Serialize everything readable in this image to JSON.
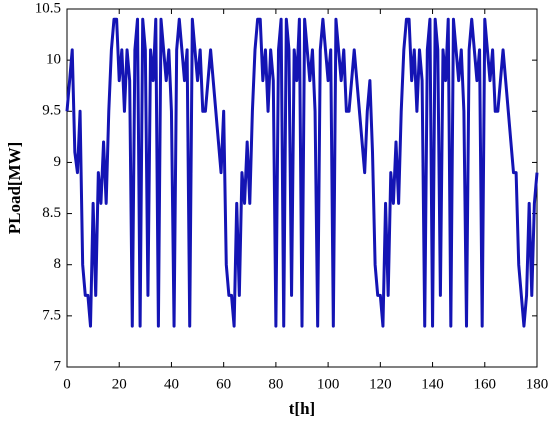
{
  "chart_data": {
    "type": "line",
    "xlabel": "t[h]",
    "ylabel": "PLoad[MW]",
    "xlim": [
      0,
      180
    ],
    "ylim": [
      7,
      10.5
    ],
    "xticks": [
      0,
      20,
      40,
      60,
      80,
      100,
      120,
      140,
      160,
      180
    ],
    "yticks": [
      7,
      7.5,
      8,
      8.5,
      9,
      9.5,
      10,
      10.5
    ],
    "x": [
      0,
      1,
      2,
      3,
      4,
      5,
      6,
      7,
      8,
      9,
      10,
      11,
      12,
      13,
      14,
      15,
      16,
      17,
      18,
      19,
      20,
      21,
      22,
      23,
      24,
      25,
      26,
      27,
      28,
      29,
      30,
      31,
      32,
      33,
      34,
      35,
      36,
      37,
      38,
      39,
      40,
      41,
      42,
      43,
      44,
      45,
      46,
      47,
      48,
      49,
      50,
      51,
      52,
      53,
      54,
      55,
      56,
      57,
      58,
      59,
      60,
      61,
      62,
      63,
      64,
      65,
      66,
      67,
      68,
      69,
      70,
      71,
      72,
      73,
      74,
      75,
      76,
      77,
      78,
      79,
      80,
      81,
      82,
      83,
      84,
      85,
      86,
      87,
      88,
      89,
      90,
      91,
      92,
      93,
      94,
      95,
      96,
      97,
      98,
      99,
      100,
      101,
      102,
      103,
      104,
      105,
      106,
      107,
      108,
      109,
      110,
      111,
      112,
      113,
      114,
      115,
      116,
      117,
      118,
      119,
      120,
      121,
      122,
      123,
      124,
      125,
      126,
      127,
      128,
      129,
      130,
      131,
      132,
      133,
      134,
      135,
      136,
      137,
      138,
      139,
      140,
      141,
      142,
      143,
      144,
      145,
      146,
      147,
      148,
      149,
      150,
      151,
      152,
      153,
      154,
      155,
      156,
      157,
      158,
      159,
      160,
      161,
      162,
      163,
      164,
      165,
      166,
      167,
      168,
      169,
      170,
      171,
      172,
      173,
      174,
      175,
      176,
      177,
      178,
      179,
      180
    ],
    "series": [
      {
        "color": "#1414b4",
        "values": [
          9.5,
          9.8,
          10.1,
          9.1,
          8.9,
          9.5,
          8.0,
          7.7,
          7.7,
          7.4,
          8.6,
          7.7,
          8.9,
          8.6,
          9.2,
          8.6,
          9.5,
          10.1,
          10.4,
          10.4,
          9.8,
          10.1,
          9.5,
          10.1,
          9.8,
          7.4,
          10.1,
          10.4,
          7.4,
          10.4,
          10.1,
          7.7,
          10.1,
          9.8,
          10.4,
          7.4,
          10.4,
          10.1,
          9.8,
          10.1,
          9.5,
          7.4,
          10.1,
          10.4,
          10.1,
          9.8,
          10.1,
          7.4,
          10.4,
          10.1,
          9.8,
          10.1,
          9.5,
          9.5,
          9.8,
          10.1,
          9.8,
          9.5,
          9.2,
          8.9,
          9.5,
          8.0,
          7.7,
          7.7,
          7.4,
          8.6,
          7.7,
          8.9,
          8.6,
          9.2,
          8.6,
          9.5,
          10.1,
          10.4,
          10.4,
          9.8,
          10.1,
          9.5,
          10.1,
          9.8,
          7.4,
          10.1,
          10.4,
          7.4,
          10.4,
          10.1,
          7.7,
          10.1,
          9.8,
          10.4,
          7.4,
          10.4,
          10.1,
          9.8,
          10.1,
          9.5,
          7.4,
          10.1,
          10.4,
          10.1,
          9.8,
          10.1,
          7.4,
          10.4,
          10.1,
          9.8,
          10.1,
          9.5,
          9.5,
          9.8,
          10.1,
          9.8,
          9.5,
          9.2,
          8.9,
          9.5,
          9.8,
          9.1,
          8.0,
          7.7,
          7.7,
          7.4,
          8.6,
          7.7,
          8.9,
          8.6,
          9.2,
          8.6,
          9.5,
          10.1,
          10.4,
          10.4,
          9.8,
          10.1,
          9.5,
          10.1,
          9.8,
          7.4,
          10.1,
          10.4,
          7.4,
          10.4,
          10.1,
          7.7,
          10.1,
          9.8,
          10.4,
          7.4,
          10.4,
          10.1,
          9.8,
          10.1,
          9.5,
          7.4,
          10.1,
          10.4,
          10.1,
          9.8,
          10.1,
          7.4,
          10.4,
          10.1,
          9.8,
          10.1,
          9.5,
          9.5,
          9.8,
          10.1,
          9.8,
          9.5,
          9.2,
          8.9,
          8.9,
          8.0,
          7.7,
          7.4,
          7.7,
          8.6,
          7.7,
          8.6,
          8.9
        ]
      }
    ]
  }
}
